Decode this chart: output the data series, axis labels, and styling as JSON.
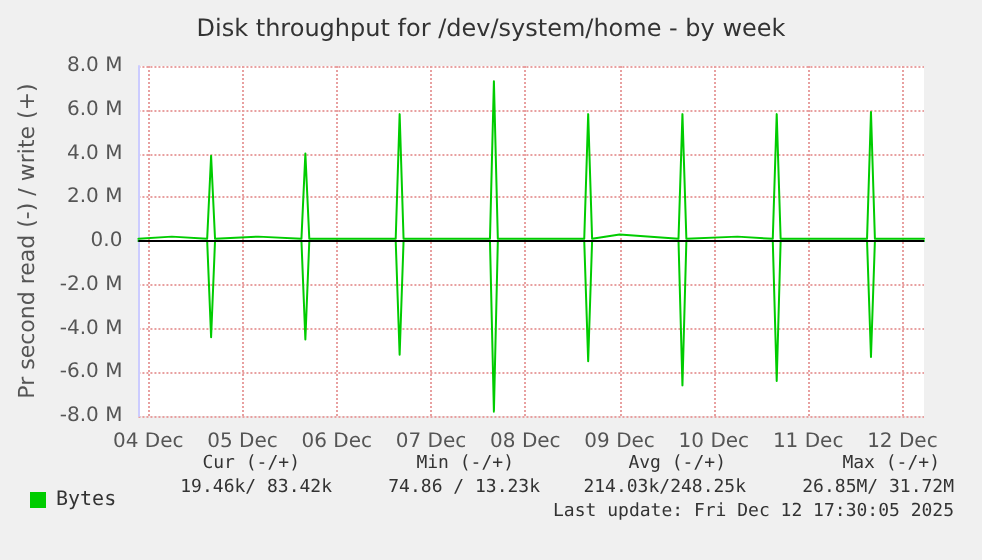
{
  "chart_data": {
    "type": "line",
    "title": "Disk throughput for /dev/system/home - by week",
    "ylabel": "Pr second read (-) / write (+)",
    "xlim": [
      "2025-12-04T09:30",
      "2025-12-12T17:30"
    ],
    "xticks": [
      {
        "value": "2025-12-04T12:00",
        "label": "04 Dec"
      },
      {
        "value": "2025-12-05T12:00",
        "label": "05 Dec"
      },
      {
        "value": "2025-12-06T12:00",
        "label": "06 Dec"
      },
      {
        "value": "2025-12-07T12:00",
        "label": "07 Dec"
      },
      {
        "value": "2025-12-08T12:00",
        "label": "08 Dec"
      },
      {
        "value": "2025-12-09T12:00",
        "label": "09 Dec"
      },
      {
        "value": "2025-12-10T12:00",
        "label": "10 Dec"
      },
      {
        "value": "2025-12-11T12:00",
        "label": "11 Dec"
      },
      {
        "value": "2025-12-12T12:00",
        "label": "12 Dec"
      }
    ],
    "ylim": [
      -8000000,
      8000000
    ],
    "yticks": [
      {
        "value": -8000000,
        "label": "-8.0 M"
      },
      {
        "value": -6000000,
        "label": "-6.0 M"
      },
      {
        "value": -4000000,
        "label": "-4.0 M"
      },
      {
        "value": -2000000,
        "label": "-2.0 M"
      },
      {
        "value": 0,
        "label": "0.0"
      },
      {
        "value": 2000000,
        "label": "2.0 M"
      },
      {
        "value": 4000000,
        "label": "4.0 M"
      },
      {
        "value": 6000000,
        "label": "6.0 M"
      },
      {
        "value": 8000000,
        "label": "8.0 M"
      }
    ],
    "series": [
      {
        "name": "Bytes",
        "color": "#00cc00",
        "x": [
          "2025-12-04T09:30",
          "2025-12-04T18:00",
          "2025-12-05T03:00",
          "2025-12-05T04:00",
          "2025-12-05T05:00",
          "2025-12-05T16:00",
          "2025-12-06T03:00",
          "2025-12-06T04:00",
          "2025-12-06T05:00",
          "2025-12-07T03:00",
          "2025-12-07T04:00",
          "2025-12-07T05:00",
          "2025-12-08T03:00",
          "2025-12-08T04:00",
          "2025-12-08T05:00",
          "2025-12-09T03:00",
          "2025-12-09T04:00",
          "2025-12-09T05:00",
          "2025-12-09T12:00",
          "2025-12-10T03:00",
          "2025-12-10T04:00",
          "2025-12-10T05:00",
          "2025-12-10T18:00",
          "2025-12-11T03:00",
          "2025-12-11T04:00",
          "2025-12-11T05:00",
          "2025-12-12T03:00",
          "2025-12-12T04:00",
          "2025-12-12T05:00",
          "2025-12-12T17:30"
        ],
        "values": [
          100000,
          200000,
          100000,
          3900000,
          100000,
          200000,
          100000,
          4000000,
          100000,
          100000,
          5800000,
          100000,
          100000,
          7300000,
          100000,
          100000,
          5800000,
          100000,
          300000,
          100000,
          5800000,
          100000,
          200000,
          100000,
          5800000,
          100000,
          100000,
          5900000,
          100000,
          100000
        ]
      },
      {
        "color": "#00cc00",
        "x": [
          "2025-12-04T09:30",
          "2025-12-05T03:00",
          "2025-12-05T04:00",
          "2025-12-05T05:00",
          "2025-12-06T03:00",
          "2025-12-06T04:00",
          "2025-12-06T05:00",
          "2025-12-07T03:00",
          "2025-12-07T04:00",
          "2025-12-07T05:00",
          "2025-12-08T03:00",
          "2025-12-08T04:00",
          "2025-12-08T05:00",
          "2025-12-09T03:00",
          "2025-12-09T04:00",
          "2025-12-09T05:00",
          "2025-12-10T03:00",
          "2025-12-10T04:00",
          "2025-12-10T05:00",
          "2025-12-11T03:00",
          "2025-12-11T04:00",
          "2025-12-11T05:00",
          "2025-12-12T03:00",
          "2025-12-12T04:00",
          "2025-12-12T05:00",
          "2025-12-12T17:30"
        ],
        "values": [
          0,
          0,
          -4400000,
          0,
          0,
          -4500000,
          0,
          0,
          -5200000,
          0,
          0,
          -7800000,
          0,
          0,
          -5500000,
          0,
          0,
          -6600000,
          0,
          0,
          -6400000,
          0,
          0,
          -5300000,
          0,
          0
        ]
      }
    ],
    "ref_lines": [
      {
        "axis": "y",
        "value": 0,
        "color": "#000000"
      }
    ],
    "grid": true,
    "legend": "bottom left",
    "marker": "none",
    "line_style": "solid",
    "annotations": [
      "Cur (-/+)",
      "Min (-/+)",
      "Avg (-/+)",
      "Max (-/+)",
      "19.46k/ 83.42k",
      "74.86 / 13.23k",
      "214.03k/248.25k",
      "26.85M/ 31.72M",
      "Last update: Fri Dec 12 17:30:05 2025"
    ]
  }
}
